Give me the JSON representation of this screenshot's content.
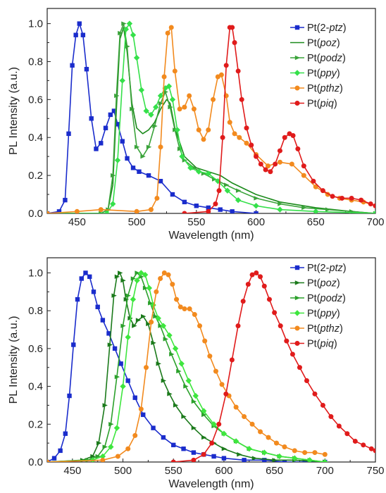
{
  "chart_data": [
    {
      "type": "line",
      "xlabel": "Wavelength (nm)",
      "ylabel": "PL Intensity (a.u.)",
      "xlim": [
        425,
        700
      ],
      "ylim": [
        0,
        1.08
      ],
      "xticks": [
        "450",
        "500",
        "550",
        "600",
        "650",
        "700"
      ],
      "yticks": [
        "0.0",
        "0.2",
        "0.4",
        "0.6",
        "0.8",
        "1.0"
      ],
      "grid": false,
      "legend_position": "top-right",
      "series": [
        {
          "name": "Pt(2-ptz)",
          "name_parts": [
            "Pt(",
            "2-",
            "ptz",
            ")"
          ],
          "color": "#1a2ccc",
          "marker": "square",
          "x": [
            425,
            435,
            440,
            443,
            446,
            449,
            452,
            455,
            458,
            462,
            466,
            470,
            474,
            478,
            481,
            484,
            488,
            492,
            497,
            502,
            510,
            520,
            530,
            540,
            550,
            560,
            570,
            580,
            600
          ],
          "y": [
            0.0,
            0.01,
            0.07,
            0.42,
            0.78,
            0.94,
            1.0,
            0.94,
            0.76,
            0.5,
            0.34,
            0.37,
            0.45,
            0.52,
            0.54,
            0.47,
            0.38,
            0.29,
            0.24,
            0.22,
            0.2,
            0.17,
            0.1,
            0.06,
            0.04,
            0.03,
            0.02,
            0.01,
            0.0
          ]
        },
        {
          "name": "Pt(poz)",
          "name_parts": [
            "Pt(",
            "",
            "poz",
            ")"
          ],
          "color": "#1b8a1b",
          "marker": "none",
          "x": [
            425,
            470,
            476,
            480,
            483,
            486,
            489,
            492,
            496,
            500,
            505,
            510,
            515,
            520,
            525,
            528,
            532,
            540,
            550,
            560,
            570,
            580,
            600,
            620,
            650,
            680,
            700
          ],
          "y": [
            0.0,
            0.0,
            0.02,
            0.15,
            0.55,
            0.92,
            0.98,
            0.85,
            0.58,
            0.45,
            0.42,
            0.44,
            0.48,
            0.55,
            0.6,
            0.58,
            0.45,
            0.3,
            0.24,
            0.22,
            0.2,
            0.16,
            0.1,
            0.06,
            0.03,
            0.01,
            0.0
          ]
        },
        {
          "name": "Pt(podz)",
          "name_parts": [
            "Pt(",
            "",
            "podz",
            ")"
          ],
          "color": "#3aa33a",
          "marker": "triangle",
          "x": [
            425,
            470,
            476,
            480,
            483,
            486,
            489,
            492,
            496,
            500,
            505,
            510,
            515,
            520,
            524,
            528,
            532,
            536,
            540,
            548,
            556,
            565,
            575,
            585,
            600,
            620,
            640,
            660,
            680,
            700
          ],
          "y": [
            0.0,
            0.0,
            0.02,
            0.2,
            0.62,
            0.95,
            1.0,
            0.88,
            0.55,
            0.35,
            0.3,
            0.35,
            0.46,
            0.58,
            0.64,
            0.56,
            0.44,
            0.34,
            0.28,
            0.24,
            0.21,
            0.18,
            0.15,
            0.12,
            0.08,
            0.05,
            0.03,
            0.02,
            0.01,
            0.0
          ]
        },
        {
          "name": "Pt(ppy)",
          "name_parts": [
            "Pt(",
            "",
            "ppy",
            ")"
          ],
          "color": "#35e04a",
          "marker": "diamond",
          "x": [
            425,
            475,
            480,
            484,
            488,
            491,
            494,
            497,
            500,
            504,
            508,
            512,
            516,
            520,
            524,
            527,
            530,
            534,
            538,
            545,
            552,
            560,
            568,
            576,
            585,
            600,
            620,
            650,
            700
          ],
          "y": [
            0.0,
            0.0,
            0.05,
            0.28,
            0.7,
            0.97,
            1.0,
            0.94,
            0.82,
            0.65,
            0.54,
            0.52,
            0.56,
            0.62,
            0.66,
            0.67,
            0.6,
            0.44,
            0.3,
            0.24,
            0.22,
            0.21,
            0.17,
            0.12,
            0.07,
            0.04,
            0.02,
            0.01,
            0.0
          ]
        },
        {
          "name": "Pt(pthz)",
          "name_parts": [
            "Pt(",
            "",
            "pthz",
            ")"
          ],
          "color": "#f28a1e",
          "marker": "circle",
          "x": [
            425,
            450,
            470,
            500,
            512,
            517,
            520,
            523,
            526,
            529,
            532,
            536,
            540,
            544,
            548,
            552,
            556,
            560,
            564,
            568,
            571,
            575,
            578,
            582,
            586,
            592,
            600,
            610,
            620,
            630,
            640,
            650,
            660,
            670,
            680,
            690,
            700
          ],
          "y": [
            0.0,
            0.01,
            0.02,
            0.01,
            0.02,
            0.08,
            0.35,
            0.72,
            0.95,
            0.98,
            0.75,
            0.55,
            0.56,
            0.62,
            0.55,
            0.44,
            0.39,
            0.44,
            0.6,
            0.72,
            0.73,
            0.62,
            0.48,
            0.42,
            0.4,
            0.37,
            0.31,
            0.25,
            0.27,
            0.26,
            0.2,
            0.14,
            0.1,
            0.08,
            0.07,
            0.06,
            0.04
          ]
        },
        {
          "name": "Pt(piq)",
          "name_parts": [
            "Pt(",
            "",
            "piq",
            ")"
          ],
          "color": "#e01b1b",
          "marker": "circle",
          "x": [
            540,
            560,
            566,
            569,
            572,
            575,
            578,
            580,
            582,
            585,
            588,
            592,
            596,
            600,
            604,
            608,
            612,
            616,
            620,
            624,
            628,
            631,
            635,
            640,
            648,
            656,
            664,
            672,
            680,
            688,
            696,
            700
          ],
          "y": [
            0.0,
            0.01,
            0.05,
            0.12,
            0.4,
            0.78,
            0.98,
            0.98,
            0.9,
            0.75,
            0.6,
            0.45,
            0.36,
            0.3,
            0.26,
            0.23,
            0.22,
            0.26,
            0.33,
            0.4,
            0.42,
            0.41,
            0.34,
            0.25,
            0.17,
            0.12,
            0.09,
            0.08,
            0.08,
            0.07,
            0.05,
            0.04
          ]
        }
      ]
    },
    {
      "type": "line",
      "xlabel": "Wavelength (nm)",
      "ylabel": "PL Intensity (a.u.)",
      "xlim": [
        425,
        750
      ],
      "ylim": [
        0,
        1.08
      ],
      "xticks": [
        "450",
        "500",
        "550",
        "600",
        "650",
        "700",
        "750"
      ],
      "yticks": [
        "0.0",
        "0.2",
        "0.4",
        "0.6",
        "0.8",
        "1.0"
      ],
      "grid": false,
      "legend_position": "top-right",
      "series": [
        {
          "name": "Pt(2-ptz)",
          "name_parts": [
            "Pt(",
            "2-",
            "ptz",
            ")"
          ],
          "color": "#1a2ccc",
          "marker": "square",
          "x": [
            425,
            432,
            438,
            443,
            447,
            451,
            455,
            459,
            463,
            467,
            471,
            475,
            480,
            486,
            492,
            498,
            505,
            512,
            520,
            530,
            540,
            550,
            560,
            570,
            580,
            590,
            600,
            620,
            640,
            660,
            680,
            700
          ],
          "y": [
            0.0,
            0.02,
            0.06,
            0.15,
            0.35,
            0.62,
            0.86,
            0.97,
            1.0,
            0.98,
            0.9,
            0.82,
            0.75,
            0.68,
            0.6,
            0.52,
            0.43,
            0.34,
            0.25,
            0.18,
            0.13,
            0.09,
            0.07,
            0.05,
            0.04,
            0.03,
            0.02,
            0.01,
            0.01,
            0.0,
            0.0,
            0.0
          ]
        },
        {
          "name": "Pt(poz)",
          "name_parts": [
            "Pt(",
            "",
            "poz",
            ")"
          ],
          "color": "#1b7a1b",
          "marker": "triangle",
          "x": [
            425,
            460,
            470,
            476,
            482,
            487,
            491,
            494,
            497,
            500,
            503,
            507,
            511,
            515,
            520,
            525,
            530,
            535,
            540,
            546,
            552,
            560,
            570,
            580,
            590,
            600,
            615,
            630,
            650,
            670,
            700
          ],
          "y": [
            0.0,
            0.01,
            0.03,
            0.1,
            0.3,
            0.62,
            0.88,
            0.98,
            1.0,
            0.96,
            0.86,
            0.76,
            0.72,
            0.75,
            0.77,
            0.73,
            0.63,
            0.52,
            0.43,
            0.36,
            0.3,
            0.24,
            0.18,
            0.13,
            0.1,
            0.07,
            0.04,
            0.02,
            0.01,
            0.01,
            0.0
          ]
        },
        {
          "name": "Pt(podz)",
          "name_parts": [
            "Pt(",
            "",
            "podz",
            ")"
          ],
          "color": "#2ba02b",
          "marker": "triangle",
          "x": [
            425,
            465,
            475,
            482,
            488,
            494,
            500,
            505,
            510,
            514,
            518,
            522,
            527,
            532,
            537,
            542,
            548,
            555,
            562,
            570,
            580,
            590,
            600,
            612,
            625,
            640,
            655,
            670,
            685,
            700
          ],
          "y": [
            0.0,
            0.01,
            0.03,
            0.08,
            0.2,
            0.45,
            0.72,
            0.88,
            0.97,
            1.0,
            0.98,
            0.92,
            0.84,
            0.77,
            0.72,
            0.65,
            0.57,
            0.48,
            0.4,
            0.32,
            0.25,
            0.19,
            0.15,
            0.11,
            0.07,
            0.05,
            0.03,
            0.02,
            0.01,
            0.0
          ]
        },
        {
          "name": "Pt(ppy)",
          "name_parts": [
            "Pt(",
            "",
            "ppy",
            ")"
          ],
          "color": "#3ee63e",
          "marker": "diamond",
          "x": [
            425,
            470,
            480,
            488,
            494,
            500,
            505,
            510,
            514,
            518,
            522,
            526,
            530,
            535,
            540,
            546,
            552,
            558,
            565,
            572,
            580,
            590,
            600,
            612,
            625,
            640,
            655,
            670,
            685,
            700
          ],
          "y": [
            0.0,
            0.01,
            0.03,
            0.08,
            0.18,
            0.4,
            0.66,
            0.86,
            0.96,
            1.0,
            0.99,
            0.92,
            0.83,
            0.76,
            0.72,
            0.67,
            0.6,
            0.52,
            0.43,
            0.35,
            0.27,
            0.2,
            0.15,
            0.11,
            0.07,
            0.05,
            0.03,
            0.02,
            0.01,
            0.0
          ]
        },
        {
          "name": "Pt(pthz)",
          "name_parts": [
            "Pt(",
            "",
            "pthz",
            ")"
          ],
          "color": "#f28a1e",
          "marker": "circle",
          "x": [
            425,
            480,
            495,
            505,
            512,
            518,
            523,
            528,
            533,
            537,
            541,
            545,
            549,
            553,
            557,
            561,
            566,
            571,
            576,
            581,
            586,
            592,
            598,
            605,
            612,
            620,
            628,
            636,
            644,
            652,
            660,
            670,
            680,
            690,
            700
          ],
          "y": [
            0.0,
            0.01,
            0.03,
            0.07,
            0.14,
            0.28,
            0.5,
            0.74,
            0.9,
            0.97,
            1.0,
            0.99,
            0.94,
            0.86,
            0.82,
            0.81,
            0.81,
            0.78,
            0.72,
            0.64,
            0.56,
            0.48,
            0.41,
            0.35,
            0.29,
            0.24,
            0.2,
            0.16,
            0.13,
            0.1,
            0.08,
            0.06,
            0.05,
            0.05,
            0.04
          ]
        },
        {
          "name": "Pt(piq)",
          "name_parts": [
            "Pt(",
            "",
            "piq",
            ")"
          ],
          "color": "#e01b1b",
          "marker": "circle",
          "x": [
            550,
            570,
            580,
            588,
            595,
            602,
            608,
            614,
            619,
            624,
            628,
            632,
            636,
            640,
            645,
            650,
            656,
            662,
            668,
            675,
            682,
            690,
            698,
            706,
            714,
            722,
            730,
            738,
            746,
            750
          ],
          "y": [
            0.0,
            0.01,
            0.04,
            0.1,
            0.2,
            0.36,
            0.54,
            0.72,
            0.85,
            0.94,
            0.99,
            1.0,
            0.98,
            0.93,
            0.86,
            0.79,
            0.72,
            0.64,
            0.57,
            0.5,
            0.43,
            0.36,
            0.3,
            0.24,
            0.19,
            0.15,
            0.11,
            0.09,
            0.07,
            0.06
          ]
        }
      ]
    }
  ]
}
